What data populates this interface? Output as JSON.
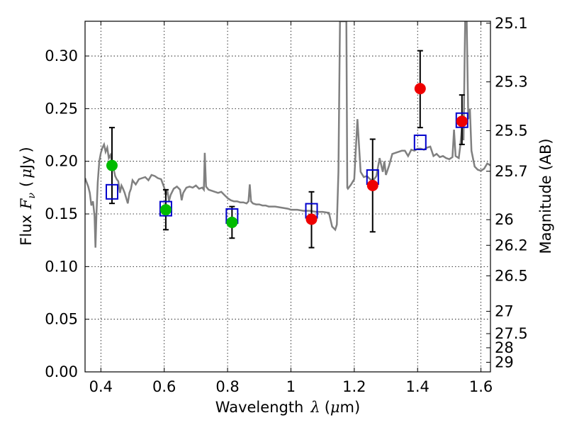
{
  "chart_data": {
    "type": "scatter",
    "xlabel": {
      "text": "Wavelength",
      "symbol": "λ",
      "unit_open": "(",
      "unit_mu": "μ",
      "unit_rest": "m)"
    },
    "ylabel": {
      "text": "Flux",
      "symbol": "F",
      "subscript": "ν",
      "unit_open": "(",
      "unit_mu": "μ",
      "unit_rest": "Jy",
      "unit_close": ")"
    },
    "y2label": "Magnitude (AB)",
    "xlim": [
      0.35,
      1.63
    ],
    "ylim": [
      0.0,
      0.333
    ],
    "xticks": [
      {
        "value": 0.4,
        "label": "0.4"
      },
      {
        "value": 0.6,
        "label": "0.6"
      },
      {
        "value": 0.8,
        "label": "0.8"
      },
      {
        "value": 1.0,
        "label": "1"
      },
      {
        "value": 1.2,
        "label": "1.2"
      },
      {
        "value": 1.4,
        "label": "1.4"
      },
      {
        "value": 1.6,
        "label": "1.6"
      }
    ],
    "yticks": [
      {
        "value": 0.0,
        "label": "0.00"
      },
      {
        "value": 0.05,
        "label": "0.05"
      },
      {
        "value": 0.1,
        "label": "0.10"
      },
      {
        "value": 0.15,
        "label": "0.15"
      },
      {
        "value": 0.2,
        "label": "0.20"
      },
      {
        "value": 0.25,
        "label": "0.25"
      },
      {
        "value": 0.3,
        "label": "0.30"
      }
    ],
    "y2ticks": [
      {
        "mag": 25.1,
        "label": "25.1"
      },
      {
        "mag": 25.3,
        "label": "25.3"
      },
      {
        "mag": 25.5,
        "label": "25.5"
      },
      {
        "mag": 25.7,
        "label": "25.7"
      },
      {
        "mag": 26.0,
        "label": "26"
      },
      {
        "mag": 26.2,
        "label": "26.2"
      },
      {
        "mag": 26.5,
        "label": "26.5"
      },
      {
        "mag": 27.0,
        "label": "27"
      },
      {
        "mag": 27.5,
        "label": "27.5"
      },
      {
        "mag": 28.0,
        "label": "28"
      },
      {
        "mag": 29.0,
        "label": "29"
      }
    ],
    "grid": true,
    "colors": {
      "spectrum": "#808080",
      "model_box": "#0000cc",
      "green": "#00bb00",
      "red": "#ee0000",
      "errorbar": "#000000"
    },
    "spectrum": [
      [
        0.35,
        0.184
      ],
      [
        0.36,
        0.176
      ],
      [
        0.365,
        0.17
      ],
      [
        0.37,
        0.158
      ],
      [
        0.375,
        0.162
      ],
      [
        0.38,
        0.148
      ],
      [
        0.383,
        0.118
      ],
      [
        0.386,
        0.15
      ],
      [
        0.39,
        0.18
      ],
      [
        0.395,
        0.2
      ],
      [
        0.4,
        0.208
      ],
      [
        0.405,
        0.213
      ],
      [
        0.41,
        0.216
      ],
      [
        0.415,
        0.209
      ],
      [
        0.42,
        0.213
      ],
      [
        0.425,
        0.203
      ],
      [
        0.43,
        0.206
      ],
      [
        0.435,
        0.199
      ],
      [
        0.44,
        0.193
      ],
      [
        0.445,
        0.186
      ],
      [
        0.45,
        0.183
      ],
      [
        0.455,
        0.181
      ],
      [
        0.46,
        0.17
      ],
      [
        0.465,
        0.177
      ],
      [
        0.47,
        0.174
      ],
      [
        0.475,
        0.17
      ],
      [
        0.48,
        0.165
      ],
      [
        0.485,
        0.16
      ],
      [
        0.49,
        0.17
      ],
      [
        0.495,
        0.174
      ],
      [
        0.5,
        0.182
      ],
      [
        0.51,
        0.178
      ],
      [
        0.52,
        0.183
      ],
      [
        0.53,
        0.184
      ],
      [
        0.54,
        0.185
      ],
      [
        0.55,
        0.182
      ],
      [
        0.56,
        0.187
      ],
      [
        0.57,
        0.186
      ],
      [
        0.58,
        0.184
      ],
      [
        0.59,
        0.183
      ],
      [
        0.6,
        0.175
      ],
      [
        0.605,
        0.168
      ],
      [
        0.61,
        0.172
      ],
      [
        0.615,
        0.162
      ],
      [
        0.62,
        0.168
      ],
      [
        0.63,
        0.174
      ],
      [
        0.64,
        0.176
      ],
      [
        0.65,
        0.173
      ],
      [
        0.655,
        0.163
      ],
      [
        0.66,
        0.17
      ],
      [
        0.67,
        0.175
      ],
      [
        0.68,
        0.176
      ],
      [
        0.69,
        0.175
      ],
      [
        0.7,
        0.177
      ],
      [
        0.71,
        0.174
      ],
      [
        0.72,
        0.175
      ],
      [
        0.725,
        0.173
      ],
      [
        0.728,
        0.208
      ],
      [
        0.732,
        0.176
      ],
      [
        0.74,
        0.173
      ],
      [
        0.75,
        0.172
      ],
      [
        0.76,
        0.171
      ],
      [
        0.77,
        0.17
      ],
      [
        0.78,
        0.171
      ],
      [
        0.79,
        0.168
      ],
      [
        0.8,
        0.165
      ],
      [
        0.81,
        0.163
      ],
      [
        0.82,
        0.162
      ],
      [
        0.83,
        0.162
      ],
      [
        0.84,
        0.161
      ],
      [
        0.85,
        0.161
      ],
      [
        0.86,
        0.16
      ],
      [
        0.866,
        0.162
      ],
      [
        0.87,
        0.178
      ],
      [
        0.874,
        0.162
      ],
      [
        0.88,
        0.16
      ],
      [
        0.89,
        0.159
      ],
      [
        0.9,
        0.159
      ],
      [
        0.91,
        0.158
      ],
      [
        0.92,
        0.158
      ],
      [
        0.93,
        0.157
      ],
      [
        0.95,
        0.157
      ],
      [
        0.97,
        0.156
      ],
      [
        0.99,
        0.155
      ],
      [
        1.0,
        0.154
      ],
      [
        1.02,
        0.154
      ],
      [
        1.04,
        0.153
      ],
      [
        1.06,
        0.153
      ],
      [
        1.08,
        0.152
      ],
      [
        1.1,
        0.152
      ],
      [
        1.12,
        0.151
      ],
      [
        1.13,
        0.138
      ],
      [
        1.14,
        0.135
      ],
      [
        1.145,
        0.14
      ],
      [
        1.15,
        0.19
      ],
      [
        1.155,
        0.333
      ],
      [
        1.16,
        0.333
      ],
      [
        1.165,
        0.333
      ],
      [
        1.17,
        0.333
      ],
      [
        1.175,
        0.333
      ],
      [
        1.178,
        0.175
      ],
      [
        1.18,
        0.174
      ],
      [
        1.19,
        0.178
      ],
      [
        1.2,
        0.183
      ],
      [
        1.21,
        0.24
      ],
      [
        1.22,
        0.19
      ],
      [
        1.23,
        0.185
      ],
      [
        1.24,
        0.186
      ],
      [
        1.25,
        0.183
      ],
      [
        1.26,
        0.182
      ],
      [
        1.27,
        0.186
      ],
      [
        1.28,
        0.203
      ],
      [
        1.29,
        0.19
      ],
      [
        1.295,
        0.2
      ],
      [
        1.3,
        0.187
      ],
      [
        1.31,
        0.196
      ],
      [
        1.32,
        0.207
      ],
      [
        1.33,
        0.208
      ],
      [
        1.34,
        0.209
      ],
      [
        1.35,
        0.21
      ],
      [
        1.36,
        0.21
      ],
      [
        1.37,
        0.205
      ],
      [
        1.38,
        0.211
      ],
      [
        1.39,
        0.21
      ],
      [
        1.4,
        0.212
      ],
      [
        1.41,
        0.212
      ],
      [
        1.42,
        0.211
      ],
      [
        1.43,
        0.213
      ],
      [
        1.44,
        0.214
      ],
      [
        1.45,
        0.205
      ],
      [
        1.46,
        0.207
      ],
      [
        1.47,
        0.204
      ],
      [
        1.48,
        0.205
      ],
      [
        1.49,
        0.203
      ],
      [
        1.5,
        0.202
      ],
      [
        1.51,
        0.204
      ],
      [
        1.515,
        0.23
      ],
      [
        1.52,
        0.205
      ],
      [
        1.53,
        0.203
      ],
      [
        1.535,
        0.215
      ],
      [
        1.54,
        0.233
      ],
      [
        1.545,
        0.22
      ],
      [
        1.55,
        0.333
      ],
      [
        1.555,
        0.333
      ],
      [
        1.56,
        0.24
      ],
      [
        1.565,
        0.25
      ],
      [
        1.57,
        0.21
      ],
      [
        1.58,
        0.195
      ],
      [
        1.59,
        0.192
      ],
      [
        1.6,
        0.191
      ],
      [
        1.61,
        0.193
      ],
      [
        1.62,
        0.198
      ],
      [
        1.63,
        0.196
      ]
    ],
    "model_boxes": [
      {
        "x": 0.435,
        "y": 0.171
      },
      {
        "x": 0.605,
        "y": 0.155
      },
      {
        "x": 0.814,
        "y": 0.148
      },
      {
        "x": 1.065,
        "y": 0.153
      },
      {
        "x": 1.258,
        "y": 0.185
      },
      {
        "x": 1.408,
        "y": 0.218
      },
      {
        "x": 1.54,
        "y": 0.239
      }
    ],
    "observations": [
      {
        "x": 0.435,
        "y": 0.196,
        "err_hi": 0.232,
        "err_lo": 0.16,
        "color": "green"
      },
      {
        "x": 0.605,
        "y": 0.154,
        "err_hi": 0.173,
        "err_lo": 0.135,
        "color": "green"
      },
      {
        "x": 0.814,
        "y": 0.142,
        "err_hi": 0.157,
        "err_lo": 0.127,
        "color": "green"
      },
      {
        "x": 1.065,
        "y": 0.145,
        "err_hi": 0.171,
        "err_lo": 0.118,
        "color": "red"
      },
      {
        "x": 1.258,
        "y": 0.177,
        "err_hi": 0.221,
        "err_lo": 0.133,
        "color": "red"
      },
      {
        "x": 1.408,
        "y": 0.269,
        "err_hi": 0.305,
        "err_lo": 0.232,
        "color": "red"
      },
      {
        "x": 1.54,
        "y": 0.238,
        "err_hi": 0.263,
        "err_lo": 0.216,
        "color": "red"
      }
    ]
  }
}
